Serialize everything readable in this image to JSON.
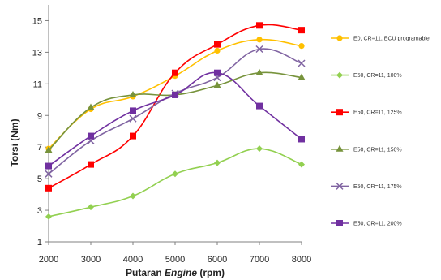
{
  "chart_data": {
    "type": "line",
    "xlabel_prefix": "Putaran ",
    "xlabel_italic": "Engine",
    "xlabel_suffix": " (rpm)",
    "ylabel": "Torsi (Nm)",
    "x": [
      2000,
      3000,
      4000,
      5000,
      6000,
      7000,
      8000
    ],
    "xlim": [
      2000,
      8000
    ],
    "ylim": [
      1,
      16
    ],
    "yticks": [
      1,
      3,
      5,
      7,
      9,
      11,
      13,
      15
    ],
    "grid": false,
    "legend_position": "right",
    "series": [
      {
        "name": "E0, CR=11, ECU programable",
        "color": "#ffc000",
        "marker": "circle",
        "values": [
          6.9,
          9.4,
          10.2,
          11.5,
          13.1,
          13.8,
          13.4
        ]
      },
      {
        "name": "E50, CR=11, 100%",
        "color": "#92d050",
        "marker": "diamond",
        "values": [
          2.6,
          3.2,
          3.9,
          5.3,
          6.0,
          6.9,
          5.9
        ]
      },
      {
        "name": "E50, CR=11, 125%",
        "color": "#ff0000",
        "marker": "square",
        "values": [
          4.4,
          5.9,
          7.7,
          11.7,
          13.5,
          14.7,
          14.4
        ]
      },
      {
        "name": "E50, CR=11, 150%",
        "color": "#77933c",
        "marker": "triangle",
        "values": [
          6.8,
          9.5,
          10.3,
          10.3,
          10.9,
          11.7,
          11.4
        ]
      },
      {
        "name": "E50, CR=11, 175%",
        "color": "#8064a2",
        "marker": "cross",
        "values": [
          5.3,
          7.4,
          8.8,
          10.4,
          11.4,
          13.2,
          12.3
        ]
      },
      {
        "name": "E50, CR=11, 200%",
        "color": "#7030a0",
        "marker": "square",
        "values": [
          5.8,
          7.7,
          9.3,
          10.3,
          11.7,
          9.6,
          7.5
        ]
      }
    ]
  }
}
